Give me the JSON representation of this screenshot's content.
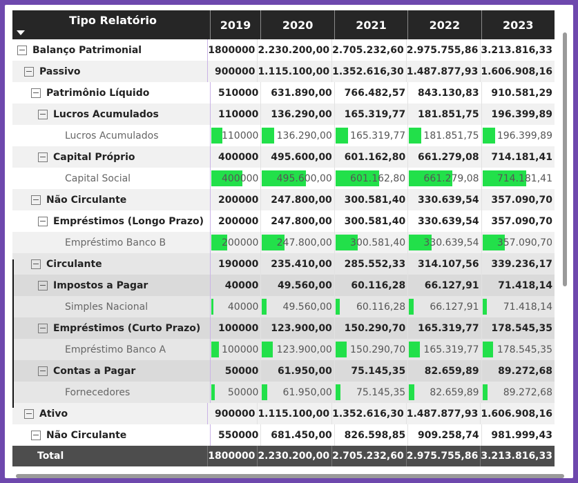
{
  "header": {
    "label_col": "Tipo Relatório",
    "years": [
      "2019",
      "2020",
      "2021",
      "2022",
      "2023"
    ],
    "sort_icon": "sort-desc-icon"
  },
  "rows": [
    {
      "label": "Balanço Patrimonial",
      "level": 0,
      "type": "group",
      "bg": "w",
      "values": [
        "1800000",
        "2.230.200,00",
        "2.705.232,60",
        "2.975.755,86",
        "3.213.816,33"
      ]
    },
    {
      "label": "Passivo",
      "level": 1,
      "type": "group",
      "bg": "l",
      "values": [
        "900000",
        "1.115.100,00",
        "1.352.616,30",
        "1.487.877,93",
        "1.606.908,16"
      ]
    },
    {
      "label": "Patrimônio Líquido",
      "level": 2,
      "type": "group",
      "bg": "w",
      "values": [
        "510000",
        "631.890,00",
        "766.482,57",
        "843.130,83",
        "910.581,29"
      ]
    },
    {
      "label": "Lucros Acumulados",
      "level": 3,
      "type": "group",
      "bg": "l",
      "values": [
        "110000",
        "136.290,00",
        "165.319,77",
        "181.851,75",
        "196.399,89"
      ]
    },
    {
      "label": "Lucros Acumulados",
      "level": 4,
      "type": "leaf",
      "bg": "w",
      "values": [
        "110000",
        "136.290,00",
        "165.319,77",
        "181.851,75",
        "196.399,89"
      ],
      "bars": [
        0.22,
        0.17,
        0.17,
        0.17,
        0.17
      ]
    },
    {
      "label": "Capital Próprio",
      "level": 3,
      "type": "group",
      "bg": "l",
      "values": [
        "400000",
        "495.600,00",
        "601.162,80",
        "661.279,08",
        "714.181,41"
      ]
    },
    {
      "label": "Capital Social",
      "level": 4,
      "type": "leaf",
      "bg": "w",
      "values": [
        "400000",
        "495.600,00",
        "601.162,80",
        "661.279,08",
        "714.181,41"
      ],
      "bars": [
        0.62,
        0.6,
        0.6,
        0.6,
        0.6
      ]
    },
    {
      "label": "Não Circulante",
      "level": 2,
      "type": "group",
      "bg": "l",
      "values": [
        "200000",
        "247.800,00",
        "300.581,40",
        "330.639,54",
        "357.090,70"
      ]
    },
    {
      "label": "Empréstimos (Longo Prazo)",
      "level": 3,
      "type": "group",
      "bg": "w",
      "values": [
        "200000",
        "247.800,00",
        "300.581,40",
        "330.639,54",
        "357.090,70"
      ]
    },
    {
      "label": "Empréstimo Banco B",
      "level": 4,
      "type": "leaf",
      "bg": "l",
      "values": [
        "200000",
        "247.800,00",
        "300.581,40",
        "330.639,54",
        "357.090,70"
      ],
      "bars": [
        0.32,
        0.31,
        0.31,
        0.31,
        0.31
      ]
    },
    {
      "label": "Circulante",
      "level": 2,
      "type": "group",
      "bg": "m",
      "values": [
        "190000",
        "235.410,00",
        "285.552,33",
        "314.107,56",
        "339.236,17"
      ]
    },
    {
      "label": "Impostos a Pagar",
      "level": 3,
      "type": "group",
      "bg": "d",
      "values": [
        "40000",
        "49.560,00",
        "60.116,28",
        "66.127,91",
        "71.418,14"
      ]
    },
    {
      "label": "Simples Nacional",
      "level": 4,
      "type": "leaf",
      "bg": "m",
      "values": [
        "40000",
        "49.560,00",
        "60.116,28",
        "66.127,91",
        "71.418,14"
      ],
      "bars": [
        0.05,
        0.06,
        0.06,
        0.06,
        0.06
      ]
    },
    {
      "label": "Empréstimos (Curto Prazo)",
      "level": 3,
      "type": "group",
      "bg": "d",
      "values": [
        "100000",
        "123.900,00",
        "150.290,70",
        "165.319,77",
        "178.545,35"
      ]
    },
    {
      "label": "Empréstimo Banco A",
      "level": 4,
      "type": "leaf",
      "bg": "m",
      "values": [
        "100000",
        "123.900,00",
        "150.290,70",
        "165.319,77",
        "178.545,35"
      ],
      "bars": [
        0.16,
        0.15,
        0.15,
        0.15,
        0.15
      ]
    },
    {
      "label": "Contas a Pagar",
      "level": 3,
      "type": "group",
      "bg": "d",
      "values": [
        "50000",
        "61.950,00",
        "75.145,35",
        "82.659,89",
        "89.272,68"
      ]
    },
    {
      "label": "Fornecedores",
      "level": 4,
      "type": "leaf",
      "bg": "m",
      "values": [
        "50000",
        "61.950,00",
        "75.145,35",
        "82.659,89",
        "89.272,68"
      ],
      "bars": [
        0.07,
        0.07,
        0.07,
        0.07,
        0.07
      ]
    },
    {
      "label": "Ativo",
      "level": 1,
      "type": "group",
      "bg": "l",
      "values": [
        "900000",
        "1.115.100,00",
        "1.352.616,30",
        "1.487.877,93",
        "1.606.908,16"
      ]
    },
    {
      "label": "Não Circulante",
      "level": 2,
      "type": "group",
      "bg": "w",
      "values": [
        "550000",
        "681.450,00",
        "826.598,85",
        "909.258,74",
        "981.999,43"
      ]
    }
  ],
  "total": {
    "label": "Total",
    "values": [
      "1800000",
      "2.230.200,00",
      "2.705.232,60",
      "2.975.755,86",
      "3.213.816,33"
    ]
  },
  "colors": {
    "databar": "#22e04a",
    "header_bg": "#262626",
    "total_bg": "#4d4d4d",
    "frame": "#6e48ad"
  }
}
